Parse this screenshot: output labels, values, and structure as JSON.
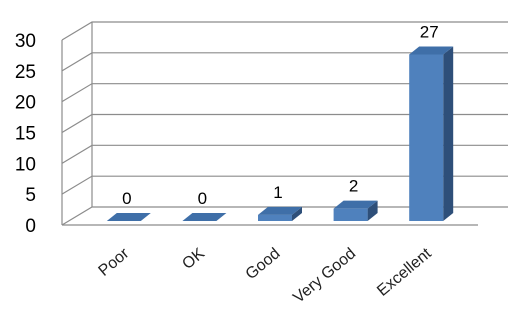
{
  "chart_data": {
    "type": "bar",
    "style": "3d-column",
    "categories": [
      "Poor",
      "OK",
      "Good",
      "Very Good",
      "Excellent"
    ],
    "values": [
      0,
      0,
      1,
      2,
      27
    ],
    "data_labels": [
      "0",
      "0",
      "1",
      "2",
      "27"
    ],
    "title": "",
    "xlabel": "",
    "ylabel": "",
    "ylim": [
      0,
      30
    ],
    "yticks": [
      0,
      5,
      10,
      15,
      20,
      25,
      30
    ],
    "grid": true,
    "legend": "none",
    "colors": {
      "bar_front": "#4f81bd",
      "bar_top": "#3f6fa8",
      "bar_side": "#2e4f79",
      "grid": "#8c8c8c"
    }
  }
}
